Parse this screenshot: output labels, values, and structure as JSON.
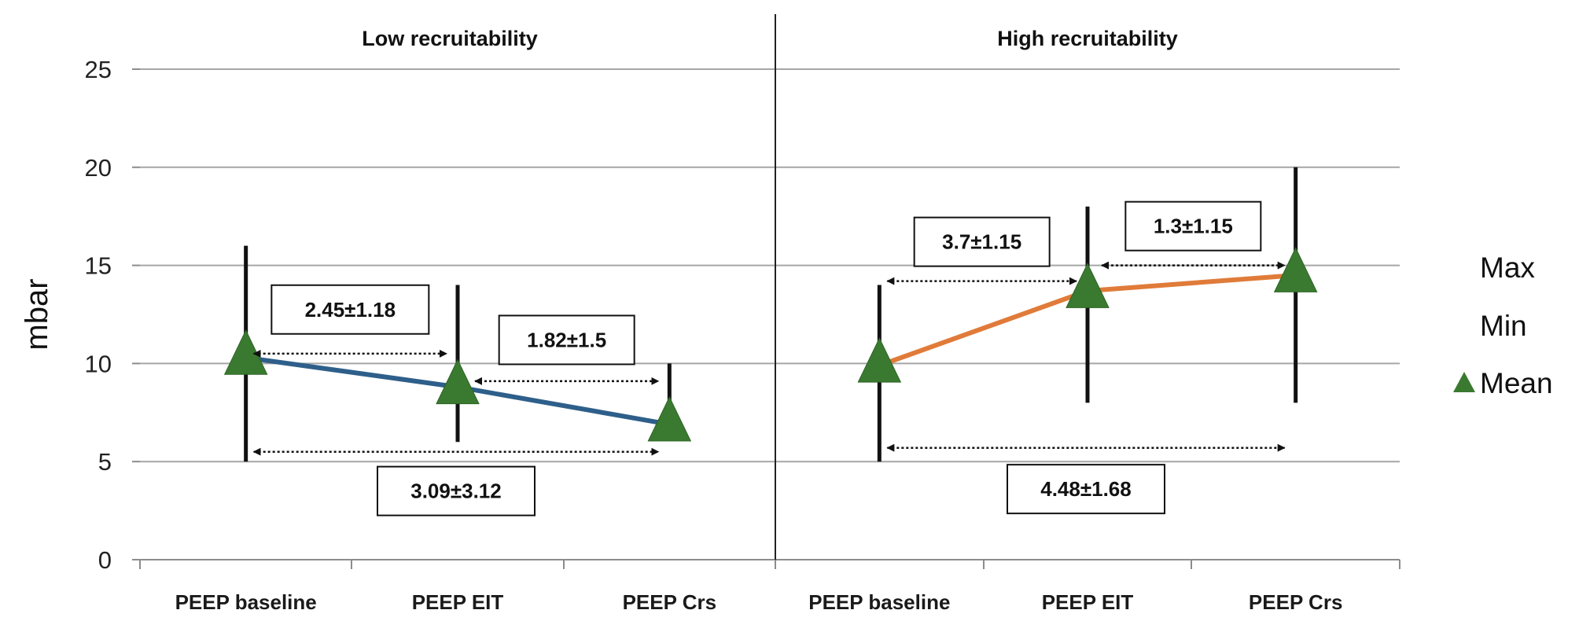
{
  "chart_data": {
    "type": "line",
    "ylabel": "mbar",
    "ylim": [
      0,
      25
    ],
    "yticks": [
      0,
      5,
      10,
      15,
      20,
      25
    ],
    "grid": true,
    "legend": {
      "placement": "right",
      "entries": [
        "Max",
        "Min",
        "Mean"
      ]
    },
    "colors": {
      "low": "#2e5f8a",
      "high": "#e07b39",
      "marker": "#3a7a30"
    },
    "panels": [
      {
        "title": "Low recruitability",
        "categories": [
          "PEEP baseline",
          "PEEP EIT",
          "PEEP Crs"
        ],
        "series": [
          {
            "mean": [
              10.3,
              8.8,
              6.9
            ],
            "max": [
              16,
              14,
              10
            ],
            "min": [
              5,
              6,
              7
            ]
          }
        ],
        "annotations": [
          {
            "text": "2.45±1.18",
            "from": "PEEP baseline",
            "to": "PEEP EIT"
          },
          {
            "text": "1.82±1.5",
            "from": "PEEP EIT",
            "to": "PEEP Crs"
          },
          {
            "text": "3.09±3.12",
            "from": "PEEP baseline",
            "to": "PEEP Crs"
          }
        ]
      },
      {
        "title": "High recruitability",
        "categories": [
          "PEEP baseline",
          "PEEP EIT",
          "PEEP Crs"
        ],
        "series": [
          {
            "mean": [
              9.9,
              13.7,
              14.5
            ],
            "max": [
              14,
              18,
              20
            ],
            "min": [
              5,
              8,
              8
            ]
          }
        ],
        "annotations": [
          {
            "text": "3.7±1.15",
            "from": "PEEP baseline",
            "to": "PEEP EIT"
          },
          {
            "text": "1.3±1.15",
            "from": "PEEP EIT",
            "to": "PEEP Crs"
          },
          {
            "text": "4.48±1.68",
            "from": "PEEP baseline",
            "to": "PEEP Crs"
          }
        ]
      }
    ]
  }
}
